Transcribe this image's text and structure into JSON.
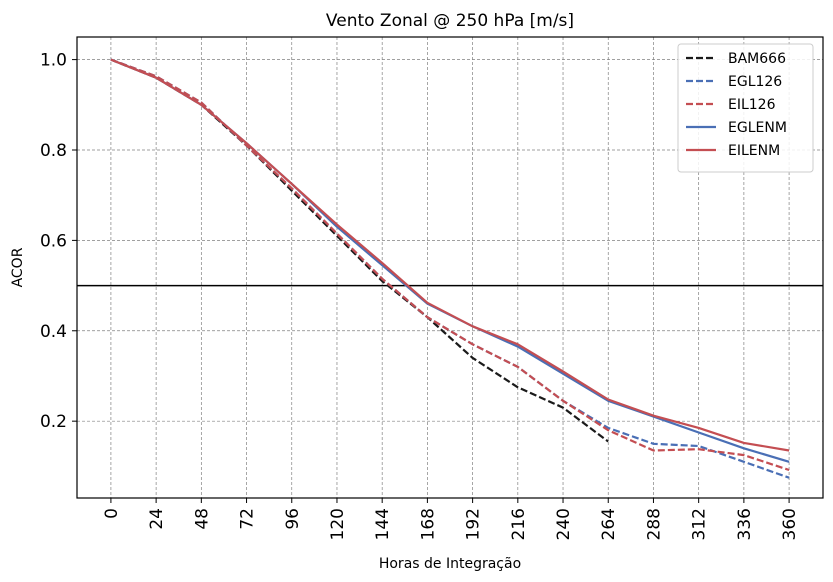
{
  "chart_data": {
    "type": "line",
    "title": "Vento Zonal @ 250 hPa [m/s]",
    "xlabel": "Horas de Integração",
    "ylabel": "ACOR",
    "x": [
      0,
      24,
      48,
      72,
      96,
      120,
      144,
      168,
      192,
      216,
      240,
      264,
      288,
      312,
      336,
      360
    ],
    "x_tick_labels": [
      "0",
      "24",
      "48",
      "72",
      "96",
      "120",
      "144",
      "168",
      "192",
      "216",
      "240",
      "264",
      "288",
      "312",
      "336",
      "360"
    ],
    "xlim": [
      -18,
      378
    ],
    "ylim": [
      0.03,
      1.05
    ],
    "y_ticks": [
      0.2,
      0.4,
      0.6,
      0.8,
      1.0
    ],
    "y_tick_labels": [
      "0.2",
      "0.4",
      "0.6",
      "0.8",
      "1.0"
    ],
    "grid": true,
    "legend_position": "top-right",
    "reference_line": {
      "y": 0.5,
      "color": "#000000"
    },
    "series": [
      {
        "name": "BAM666",
        "color": "#1a1a1a",
        "dash": "dashed",
        "values": [
          1.0,
          0.96,
          0.9,
          0.81,
          0.71,
          0.61,
          0.51,
          0.43,
          0.34,
          0.275,
          0.23,
          0.155,
          null,
          null,
          null,
          null
        ]
      },
      {
        "name": "EGL126",
        "color": "#4a6fb5",
        "dash": "dashed",
        "values": [
          1.0,
          0.963,
          0.905,
          0.81,
          0.715,
          0.615,
          0.515,
          0.43,
          0.37,
          0.32,
          0.245,
          0.185,
          0.15,
          0.145,
          0.11,
          0.075
        ]
      },
      {
        "name": "EIL126",
        "color": "#c44e52",
        "dash": "dashed",
        "values": [
          1.0,
          0.963,
          0.905,
          0.81,
          0.715,
          0.615,
          0.515,
          0.43,
          0.37,
          0.32,
          0.245,
          0.18,
          0.135,
          0.138,
          0.125,
          0.092
        ]
      },
      {
        "name": "EGLENM",
        "color": "#4a6fb5",
        "dash": "solid",
        "values": [
          1.0,
          0.96,
          0.9,
          0.815,
          0.725,
          0.63,
          0.545,
          0.46,
          0.41,
          0.365,
          0.305,
          0.245,
          0.21,
          0.175,
          0.14,
          0.11
        ]
      },
      {
        "name": "EILENM",
        "color": "#c44e52",
        "dash": "solid",
        "values": [
          1.0,
          0.96,
          0.9,
          0.815,
          0.725,
          0.635,
          0.55,
          0.462,
          0.41,
          0.37,
          0.31,
          0.248,
          0.212,
          0.185,
          0.152,
          0.135
        ]
      }
    ]
  }
}
